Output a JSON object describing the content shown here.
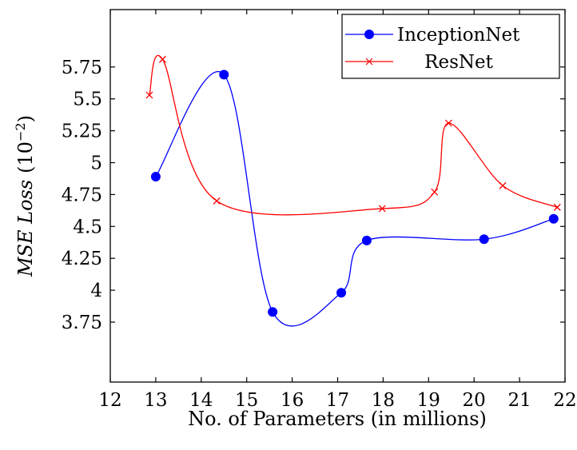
{
  "chart_data": {
    "type": "line",
    "xlabel": "No. of Parameters (in millions)",
    "ylabel": {
      "italic": "MSE Loss",
      "unit": "(10",
      "exponent": "−2",
      "close": ")"
    },
    "xlim": [
      12,
      22
    ],
    "ylim": [
      3.28,
      6.2
    ],
    "x_ticks": [
      "12",
      "13",
      "14",
      "15",
      "16",
      "17",
      "18",
      "19",
      "20",
      "21",
      "22"
    ],
    "y_ticks": [
      "3.75",
      "4",
      "4.25",
      "4.5",
      "4.75",
      "5",
      "5.25",
      "5.5",
      "5.75"
    ],
    "grid": false,
    "legend_position": "top-right",
    "series": [
      {
        "name": "InceptionNet",
        "color": "#0000ff",
        "marker": "circle",
        "points": [
          [
            13.0,
            4.89
          ],
          [
            14.5,
            5.69
          ],
          [
            15.57,
            3.83
          ],
          [
            17.08,
            3.98
          ],
          [
            17.64,
            4.39
          ],
          [
            20.22,
            4.4
          ],
          [
            21.75,
            4.56
          ]
        ]
      },
      {
        "name": "ResNet",
        "color": "#ff0000",
        "marker": "x",
        "points": [
          [
            12.86,
            5.53
          ],
          [
            13.15,
            5.81
          ],
          [
            14.34,
            4.7
          ],
          [
            17.98,
            4.64
          ],
          [
            19.13,
            4.77
          ],
          [
            19.44,
            5.31
          ],
          [
            20.63,
            4.82
          ],
          [
            21.83,
            4.65
          ]
        ]
      }
    ]
  }
}
